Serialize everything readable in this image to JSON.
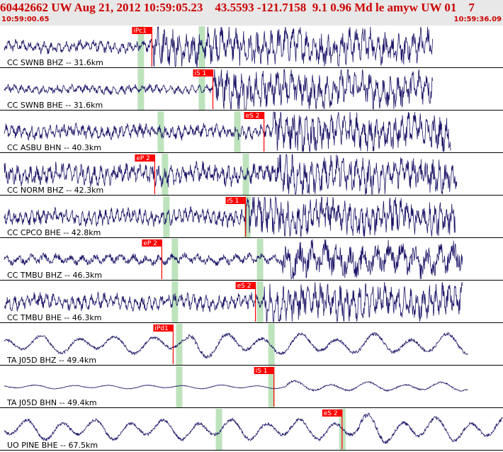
{
  "header": {
    "title": "60442662 UW Aug 21, 2012 10:59:05.23    43.5593 -121.7158  9.1 0.96 Md le amyw UW 01    7",
    "start_time": "10:59:00.65",
    "end_time": "10:59:36.09"
  },
  "colors": {
    "trace": "#1a1466",
    "pick": "#ff0000",
    "window": "#bde3bd",
    "header_bg": "#e8e8e8",
    "header_text": "#cc0000"
  },
  "chart_data": {
    "type": "line",
    "x_unit": "seconds after 10:59:00.65",
    "xlim": [
      0,
      35.44
    ],
    "traces": [
      {
        "label": "CC SWNB BHZ -- 31.6km",
        "pick": "iPc1",
        "pick_time": 10.7,
        "window_times": [
          9.9,
          14.2
        ],
        "onset": 10.8,
        "end": 30.5,
        "pre_amp": 0.35,
        "post_amp": 1.0,
        "period": 0.5
      },
      {
        "label": "CC SWNB BHE -- 31.6km",
        "pick": "iS 1",
        "pick_time": 15.0,
        "window_times": [
          9.9,
          14.2
        ],
        "onset": 15.0,
        "end": 30.5,
        "pre_amp": 0.25,
        "post_amp": 1.0,
        "period": 0.5
      },
      {
        "label": "CC ASBU BHN -- 40.3km",
        "pick": "eS 2",
        "pick_time": 18.6,
        "window_times": [
          11.3,
          16.7
        ],
        "onset": 19.2,
        "end": 31.8,
        "pre_amp": 0.4,
        "post_amp": 1.0,
        "period": 0.45
      },
      {
        "label": "CC NORM BHZ -- 42.3km",
        "pick": "eP 2",
        "pick_time": 10.9,
        "window_times": [
          11.6,
          17.3
        ],
        "onset": 19.5,
        "end": 32.2,
        "pre_amp": 0.6,
        "post_amp": 1.0,
        "period": 0.45
      },
      {
        "label": "CC CPCO BHE -- 42.8km",
        "pick": "iS 1",
        "pick_time": 17.3,
        "window_times": [
          11.7,
          17.4
        ],
        "onset": 17.3,
        "end": 32.1,
        "pre_amp": 0.45,
        "post_amp": 1.0,
        "period": 0.4
      },
      {
        "label": "CC TMBU BHZ -- 46.3km",
        "pick": "eP 2",
        "pick_time": 11.4,
        "window_times": [
          12.3,
          18.3
        ],
        "onset": 19.8,
        "end": 32.6,
        "pre_amp": 0.3,
        "post_amp": 0.9,
        "period": 0.9
      },
      {
        "label": "CC TMBU BHE -- 46.3km",
        "pick": "eS 2",
        "pick_time": 18.0,
        "window_times": [
          12.3,
          18.3
        ],
        "onset": 18.6,
        "end": 32.6,
        "pre_amp": 0.45,
        "post_amp": 1.0,
        "period": 0.45
      },
      {
        "label": "TA J05D BHZ -- 49.4km",
        "pick": "iPd1",
        "pick_time": 12.2,
        "window_times": [
          12.6,
          19.1
        ],
        "onset": 13.3,
        "end": 33.0,
        "pre_amp": 0.7,
        "post_amp": 0.8,
        "period": 2.6
      },
      {
        "label": "TA J05D BHN -- 49.4km",
        "pick": "iS 1",
        "pick_time": 19.3,
        "window_times": [
          12.6,
          19.1
        ],
        "onset": 20.2,
        "end": 33.0,
        "pre_amp": 0.15,
        "post_amp": 0.35,
        "period": 2.6
      },
      {
        "label": "UO PINE BHE -- 67.5km",
        "pick": "eS 2",
        "pick_time": 24.1,
        "window_times": [
          15.4,
          24.1
        ],
        "onset": 25.3,
        "end": 35.44,
        "pre_amp": 0.8,
        "post_amp": 0.9,
        "period": 2.4
      }
    ]
  }
}
